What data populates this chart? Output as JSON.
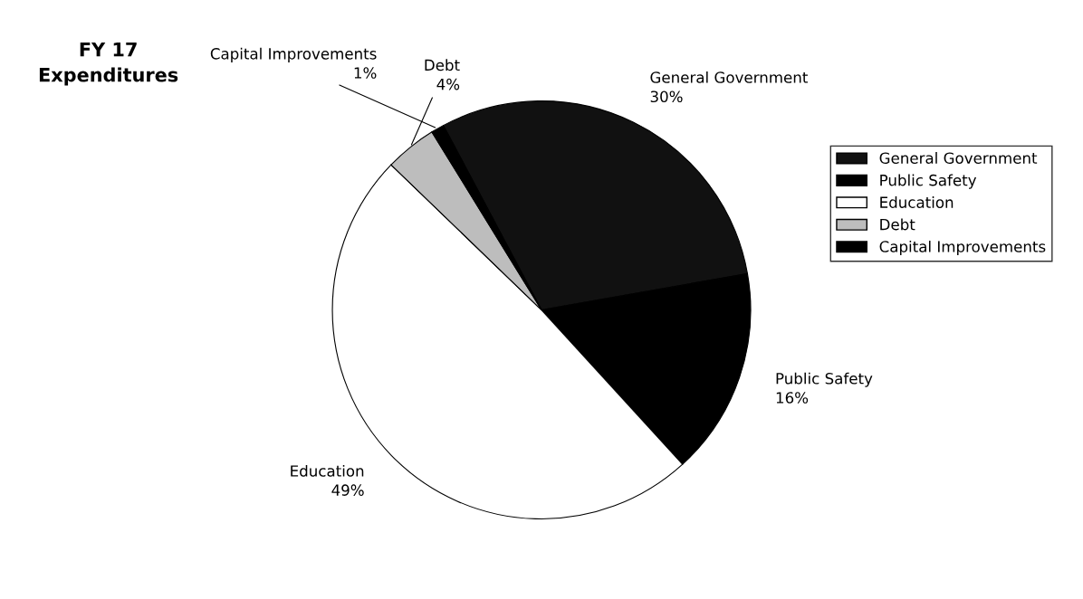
{
  "chart_data": {
    "type": "pie",
    "title": "FY 17\nExpenditures",
    "categories": [
      "General Government",
      "Public Safety",
      "Education",
      "Debt",
      "Capital Improvements"
    ],
    "values": [
      30,
      16,
      49,
      4,
      1
    ],
    "value_labels": [
      "30%",
      "16%",
      "49%",
      "4%",
      "1%"
    ],
    "colors": [
      "#111111",
      "#000000",
      "#ffffff",
      "#bdbdbd",
      "#000000"
    ],
    "legend": "right"
  }
}
